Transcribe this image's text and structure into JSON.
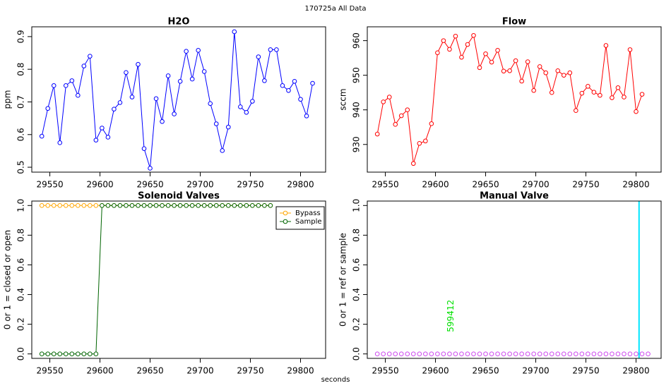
{
  "title": "170725a   All Data",
  "xlabel": "seconds",
  "chart_data": [
    {
      "type": "line",
      "title": "H2O",
      "ylabel": "ppm",
      "color": "#0000ff",
      "x": [
        29542,
        29548,
        29554,
        29560,
        29566,
        29572,
        29578,
        29584,
        29590,
        29596,
        29602,
        29608,
        29614,
        29620,
        29626,
        29632,
        29638,
        29644,
        29650,
        29656,
        29662,
        29668,
        29674,
        29680,
        29686,
        29692,
        29698,
        29704,
        29710,
        29716,
        29722,
        29728,
        29734,
        29740,
        29746,
        29752,
        29758,
        29764,
        29770,
        29776,
        29782,
        29788,
        29794,
        29800,
        29806,
        29812
      ],
      "values": [
        0.595,
        0.68,
        0.75,
        0.575,
        0.75,
        0.765,
        0.72,
        0.81,
        0.84,
        0.583,
        0.62,
        0.592,
        0.678,
        0.698,
        0.79,
        0.715,
        0.815,
        0.557,
        0.497,
        0.71,
        0.64,
        0.78,
        0.663,
        0.763,
        0.855,
        0.77,
        0.858,
        0.793,
        0.695,
        0.633,
        0.551,
        0.623,
        0.915,
        0.685,
        0.668,
        0.702,
        0.838,
        0.765,
        0.86,
        0.86,
        0.75,
        0.735,
        0.763,
        0.708,
        0.657,
        0.757
      ],
      "xlim": [
        29532,
        29825
      ],
      "xticks": [
        29550,
        29600,
        29650,
        29700,
        29750,
        29800
      ],
      "ylim": [
        0.485,
        0.93
      ],
      "yticks": [
        0.5,
        0.6,
        0.7,
        0.8,
        0.9
      ]
    },
    {
      "type": "line",
      "title": "Flow",
      "ylabel": "sccm",
      "color": "#ff0000",
      "x": [
        29542,
        29548,
        29554,
        29560,
        29566,
        29572,
        29578,
        29584,
        29590,
        29596,
        29602,
        29608,
        29614,
        29620,
        29626,
        29632,
        29638,
        29644,
        29650,
        29656,
        29662,
        29668,
        29674,
        29680,
        29686,
        29692,
        29698,
        29704,
        29710,
        29716,
        29722,
        29728,
        29734,
        29740,
        29746,
        29752,
        29758,
        29764,
        29770,
        29776,
        29782,
        29788,
        29794,
        29800,
        29806
      ],
      "values": [
        933,
        942.3,
        943.7,
        935.8,
        938.3,
        940,
        924.5,
        930.3,
        931,
        936,
        956.5,
        960,
        957.5,
        961.3,
        955.2,
        958.9,
        961.5,
        952.2,
        956.2,
        953.8,
        957.2,
        951.2,
        951.3,
        954.2,
        948.3,
        953.9,
        945.6,
        952.5,
        950.7,
        945,
        951.3,
        950,
        950.7,
        939.8,
        944.8,
        946.8,
        945.1,
        944.2,
        958.6,
        943.5,
        946.4,
        943.7,
        957.4,
        939.5,
        944.5
      ],
      "xlim": [
        29532,
        29825
      ],
      "xticks": [
        29550,
        29600,
        29650,
        29700,
        29750,
        29800
      ],
      "ylim": [
        922,
        964
      ],
      "yticks": [
        930,
        940,
        950,
        960
      ]
    },
    {
      "type": "line",
      "title": "Solenoid Valves",
      "ylabel": "0 or 1 = closed or open",
      "legend": "top-right",
      "x": [
        29542,
        29548,
        29554,
        29560,
        29566,
        29572,
        29578,
        29584,
        29590,
        29596,
        29602,
        29608,
        29614,
        29620,
        29626,
        29632,
        29638,
        29644,
        29650,
        29656,
        29662,
        29668,
        29674,
        29680,
        29686,
        29692,
        29698,
        29704,
        29710,
        29716,
        29722,
        29728,
        29734,
        29740,
        29746,
        29752,
        29758,
        29764,
        29770
      ],
      "series": [
        {
          "name": "Bypass",
          "color": "#ffa500",
          "values": [
            1,
            1,
            1,
            1,
            1,
            1,
            1,
            1,
            1,
            1,
            1,
            1,
            1,
            1,
            1,
            1,
            1,
            1,
            1,
            1,
            1,
            1,
            1,
            1,
            1,
            1,
            1,
            1,
            1,
            1,
            1,
            1,
            1,
            1,
            1,
            1,
            1,
            1,
            1
          ]
        },
        {
          "name": "Sample",
          "color": "#006400",
          "values": [
            0,
            0,
            0,
            0,
            0,
            0,
            0,
            0,
            0,
            0,
            1,
            1,
            1,
            1,
            1,
            1,
            1,
            1,
            1,
            1,
            1,
            1,
            1,
            1,
            1,
            1,
            1,
            1,
            1,
            1,
            1,
            1,
            1,
            1,
            1,
            1,
            1,
            1,
            1
          ]
        }
      ],
      "xlim": [
        29532,
        29825
      ],
      "xticks": [
        29550,
        29600,
        29650,
        29700,
        29750,
        29800
      ],
      "ylim": [
        -0.03,
        1.03
      ],
      "yticks": [
        {
          "value": 0,
          "label": "0.0"
        },
        {
          "value": 0.2,
          "label": "0.2"
        },
        {
          "value": 0.4,
          "label": "0.4"
        },
        {
          "value": 0.6,
          "label": "0.6"
        },
        {
          "value": 0.8,
          "label": "0.8"
        },
        {
          "value": 1,
          "label": "1.0"
        }
      ]
    },
    {
      "type": "scatter",
      "title": "Manual Valve",
      "ylabel": "0 or 1 = ref or sample",
      "color": "#cc44ee",
      "annotation": "599412",
      "annotation_color": "#00e000",
      "vline": {
        "value": 29803,
        "color": "#00e5ff"
      },
      "x": [
        29542,
        29548,
        29554,
        29560,
        29566,
        29572,
        29578,
        29584,
        29590,
        29596,
        29602,
        29608,
        29614,
        29620,
        29626,
        29632,
        29638,
        29644,
        29650,
        29656,
        29662,
        29668,
        29674,
        29680,
        29686,
        29692,
        29698,
        29704,
        29710,
        29716,
        29722,
        29728,
        29734,
        29740,
        29746,
        29752,
        29758,
        29764,
        29770,
        29776,
        29782,
        29788,
        29794,
        29800,
        29806,
        29812
      ],
      "values": [
        0,
        0,
        0,
        0,
        0,
        0,
        0,
        0,
        0,
        0,
        0,
        0,
        0,
        0,
        0,
        0,
        0,
        0,
        0,
        0,
        0,
        0,
        0,
        0,
        0,
        0,
        0,
        0,
        0,
        0,
        0,
        0,
        0,
        0,
        0,
        0,
        0,
        0,
        0,
        0,
        0,
        0,
        0,
        0,
        0,
        0
      ],
      "xlim": [
        29532,
        29825
      ],
      "xticks": [
        29550,
        29600,
        29650,
        29700,
        29750,
        29800
      ],
      "ylim": [
        -0.03,
        1.03
      ],
      "yticks": [
        {
          "value": 0,
          "label": "0.0"
        },
        {
          "value": 0.2,
          "label": "0.2"
        },
        {
          "value": 0.4,
          "label": "0.4"
        },
        {
          "value": 0.6,
          "label": "0.6"
        },
        {
          "value": 0.8,
          "label": "0.8"
        },
        {
          "value": 1,
          "label": "1.0"
        }
      ]
    }
  ]
}
